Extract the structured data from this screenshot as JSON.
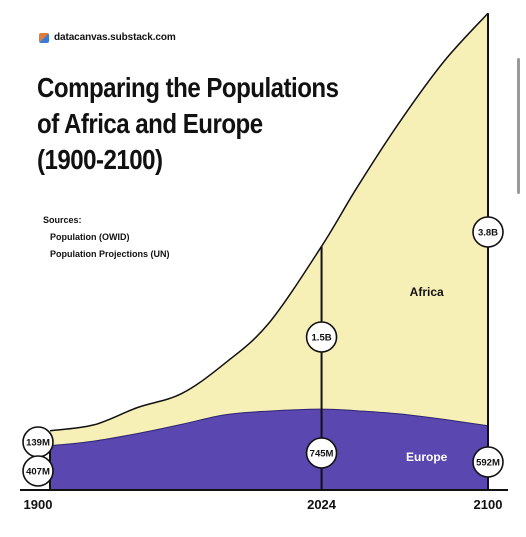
{
  "header": {
    "site": "datacanvas.substack.com",
    "logo_icon": "datacanvas-logo-icon"
  },
  "chart_data": {
    "type": "area",
    "title_lines": [
      "Comparing the Populations",
      "of Africa and Europe",
      "(1900-2100)"
    ],
    "sources_heading": "Sources:",
    "sources": [
      "Population (OWID)",
      "Population Projections (UN)"
    ],
    "x_ticks": [
      "1900",
      "2024",
      "2100"
    ],
    "x_range": [
      1900,
      2100
    ],
    "y_range_millions": [
      0,
      4200
    ],
    "stacked": true,
    "series": [
      {
        "name": "Europe",
        "color": "#5a47b0",
        "points": [
          [
            1900,
            407
          ],
          [
            1920,
            450
          ],
          [
            1940,
            520
          ],
          [
            1960,
            604
          ],
          [
            1980,
            693
          ],
          [
            2000,
            727
          ],
          [
            2024,
            745
          ],
          [
            2040,
            730
          ],
          [
            2060,
            700
          ],
          [
            2080,
            650
          ],
          [
            2100,
            592
          ]
        ]
      },
      {
        "name": "Africa",
        "color": "#f7f0b6",
        "points": [
          [
            1900,
            139
          ],
          [
            1920,
            150
          ],
          [
            1940,
            240
          ],
          [
            1960,
            283
          ],
          [
            1980,
            476
          ],
          [
            2000,
            811
          ],
          [
            2024,
            1500
          ],
          [
            2040,
            2050
          ],
          [
            2060,
            2700
          ],
          [
            2080,
            3300
          ],
          [
            2100,
            3800
          ]
        ]
      }
    ],
    "markers": [
      {
        "year": 1900,
        "series": "Africa",
        "label": "139M"
      },
      {
        "year": 1900,
        "series": "Europe",
        "label": "407M"
      },
      {
        "year": 2024,
        "series": "Africa",
        "label": "1.5B"
      },
      {
        "year": 2024,
        "series": "Europe",
        "label": "745M"
      },
      {
        "year": 2100,
        "series": "Africa",
        "label": "3.8B"
      },
      {
        "year": 2100,
        "series": "Europe",
        "label": "592M"
      }
    ],
    "area_labels": [
      "Africa",
      "Europe"
    ],
    "reference_lines": [
      2024,
      2100
    ]
  }
}
